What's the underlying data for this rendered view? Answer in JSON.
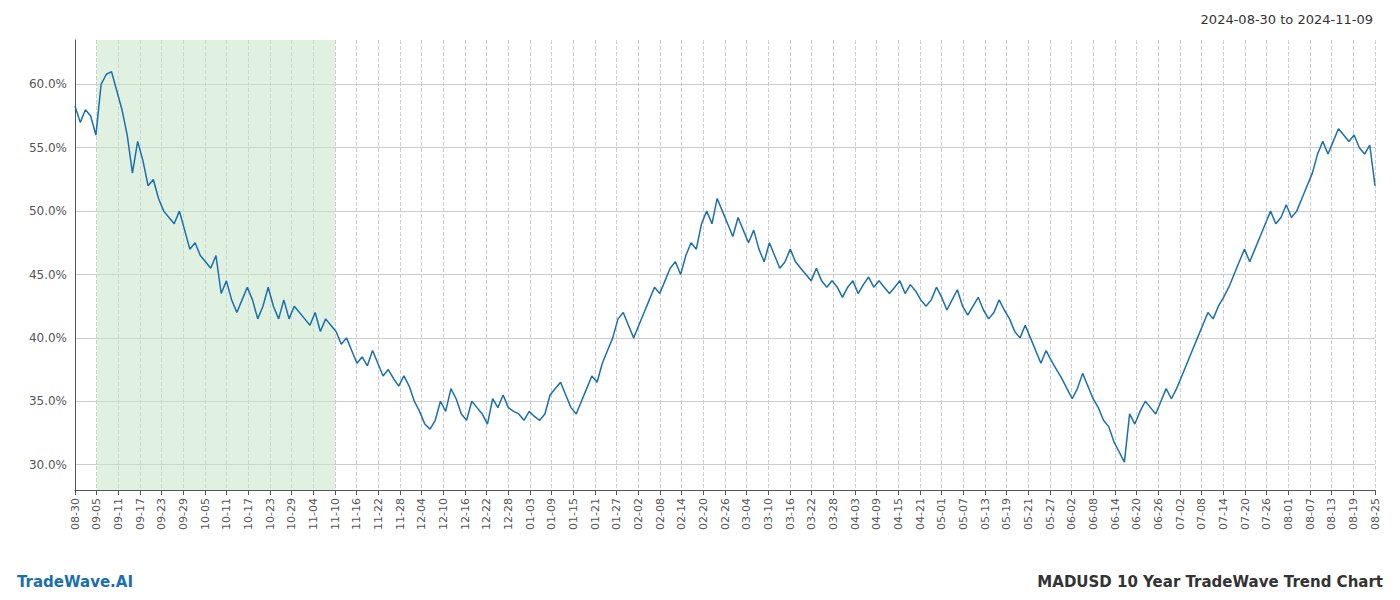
{
  "chart_data": {
    "type": "line",
    "title": "MADUSD 10 Year TradeWave Trend Chart",
    "subtitle": "2024-08-30 to 2024-11-09",
    "annotations": [
      "TradeWave.AI"
    ],
    "color": "#1a6faf",
    "grid": true,
    "bands": [
      {
        "x": [
          4.15,
          49.8
        ],
        "color": "#c8e6c9"
      }
    ],
    "xlim": [
      0,
      249
    ],
    "xticks": [
      {
        "value": 0,
        "label": "08-30"
      },
      {
        "value": 4.15,
        "label": "09-05"
      },
      {
        "value": 8.3,
        "label": "09-11"
      },
      {
        "value": 12.45,
        "label": "09-17"
      },
      {
        "value": 16.6,
        "label": "09-23"
      },
      {
        "value": 20.75,
        "label": "09-29"
      },
      {
        "value": 24.9,
        "label": "10-05"
      },
      {
        "value": 29.05,
        "label": "10-11"
      },
      {
        "value": 33.2,
        "label": "10-17"
      },
      {
        "value": 37.35,
        "label": "10-23"
      },
      {
        "value": 41.5,
        "label": "10-29"
      },
      {
        "value": 45.65,
        "label": "11-04"
      },
      {
        "value": 49.8,
        "label": "11-10"
      },
      {
        "value": 53.95,
        "label": "11-16"
      },
      {
        "value": 58.1,
        "label": "11-22"
      },
      {
        "value": 62.25,
        "label": "11-28"
      },
      {
        "value": 66.4,
        "label": "12-04"
      },
      {
        "value": 70.55,
        "label": "12-10"
      },
      {
        "value": 74.7,
        "label": "12-16"
      },
      {
        "value": 78.85,
        "label": "12-22"
      },
      {
        "value": 83,
        "label": "12-28"
      },
      {
        "value": 87.15,
        "label": "01-03"
      },
      {
        "value": 91.3,
        "label": "01-09"
      },
      {
        "value": 95.45,
        "label": "01-15"
      },
      {
        "value": 99.6,
        "label": "01-21"
      },
      {
        "value": 103.75,
        "label": "01-27"
      },
      {
        "value": 107.9,
        "label": "02-02"
      },
      {
        "value": 112.05,
        "label": "02-08"
      },
      {
        "value": 116.2,
        "label": "02-14"
      },
      {
        "value": 120.35,
        "label": "02-20"
      },
      {
        "value": 124.5,
        "label": "02-26"
      },
      {
        "value": 128.65,
        "label": "03-04"
      },
      {
        "value": 132.8,
        "label": "03-10"
      },
      {
        "value": 136.95,
        "label": "03-16"
      },
      {
        "value": 141.1,
        "label": "03-22"
      },
      {
        "value": 145.25,
        "label": "03-28"
      },
      {
        "value": 149.4,
        "label": "04-03"
      },
      {
        "value": 153.55,
        "label": "04-09"
      },
      {
        "value": 157.7,
        "label": "04-15"
      },
      {
        "value": 161.85,
        "label": "04-21"
      },
      {
        "value": 166,
        "label": "05-01"
      },
      {
        "value": 170.15,
        "label": "05-07"
      },
      {
        "value": 174.3,
        "label": "05-13"
      },
      {
        "value": 178.45,
        "label": "05-19"
      },
      {
        "value": 182.6,
        "label": "05-21"
      },
      {
        "value": 186.75,
        "label": "05-27"
      },
      {
        "value": 190.9,
        "label": "06-02"
      },
      {
        "value": 195.05,
        "label": "06-08"
      },
      {
        "value": 199.2,
        "label": "06-14"
      },
      {
        "value": 203.35,
        "label": "06-20"
      },
      {
        "value": 207.5,
        "label": "06-26"
      },
      {
        "value": 211.65,
        "label": "07-02"
      },
      {
        "value": 215.8,
        "label": "07-08"
      },
      {
        "value": 219.95,
        "label": "07-14"
      },
      {
        "value": 224.1,
        "label": "07-20"
      },
      {
        "value": 228.25,
        "label": "07-26"
      },
      {
        "value": 232.4,
        "label": "08-01"
      },
      {
        "value": 236.55,
        "label": "08-07"
      },
      {
        "value": 240.7,
        "label": "08-13"
      },
      {
        "value": 244.85,
        "label": "08-19"
      },
      {
        "value": 249,
        "label": "08-25"
      }
    ],
    "ylim": [
      0.28,
      0.635
    ],
    "yticks": [
      {
        "value": 0.3,
        "label": "30.0%"
      },
      {
        "value": 0.35,
        "label": "35.0%"
      },
      {
        "value": 0.4,
        "label": "40.0%"
      },
      {
        "value": 0.45,
        "label": "45.0%"
      },
      {
        "value": 0.5,
        "label": "50.0%"
      },
      {
        "value": 0.55,
        "label": "55.0%"
      },
      {
        "value": 0.6,
        "label": "60.0%"
      }
    ],
    "x": [
      0,
      1,
      2,
      3,
      4,
      5,
      6,
      7,
      8,
      9,
      10,
      11,
      12,
      13,
      14,
      15,
      16,
      17,
      18,
      19,
      20,
      21,
      22,
      23,
      24,
      25,
      26,
      27,
      28,
      29,
      30,
      31,
      32,
      33,
      34,
      35,
      36,
      37,
      38,
      39,
      40,
      41,
      42,
      43,
      44,
      45,
      46,
      47,
      48,
      49,
      50,
      51,
      52,
      53,
      54,
      55,
      56,
      57,
      58,
      59,
      60,
      61,
      62,
      63,
      64,
      65,
      66,
      67,
      68,
      69,
      70,
      71,
      72,
      73,
      74,
      75,
      76,
      77,
      78,
      79,
      80,
      81,
      82,
      83,
      84,
      85,
      86,
      87,
      88,
      89,
      90,
      91,
      92,
      93,
      94,
      95,
      96,
      97,
      98,
      99,
      100,
      101,
      102,
      103,
      104,
      105,
      106,
      107,
      108,
      109,
      110,
      111,
      112,
      113,
      114,
      115,
      116,
      117,
      118,
      119,
      120,
      121,
      122,
      123,
      124,
      125,
      126,
      127,
      128,
      129,
      130,
      131,
      132,
      133,
      134,
      135,
      136,
      137,
      138,
      139,
      140,
      141,
      142,
      143,
      144,
      145,
      146,
      147,
      148,
      149,
      150,
      151,
      152,
      153,
      154,
      155,
      156,
      157,
      158,
      159,
      160,
      161,
      162,
      163,
      164,
      165,
      166,
      167,
      168,
      169,
      170,
      171,
      172,
      173,
      174,
      175,
      176,
      177,
      178,
      179,
      180,
      181,
      182,
      183,
      184,
      185,
      186,
      187,
      188,
      189,
      190,
      191,
      192,
      193,
      194,
      195,
      196,
      197,
      198,
      199,
      200,
      201,
      202,
      203,
      204,
      205,
      206,
      207,
      208,
      209,
      210,
      211,
      212,
      213,
      214,
      215,
      216,
      217,
      218,
      219,
      220,
      221,
      222,
      223,
      224,
      225,
      226,
      227,
      228,
      229,
      230,
      231,
      232,
      233,
      234,
      235,
      236,
      237,
      238,
      239,
      240,
      241,
      242,
      243,
      244,
      245,
      246,
      247,
      248,
      249
    ],
    "values": [
      0.583,
      0.57,
      0.58,
      0.575,
      0.56,
      0.6,
      0.608,
      0.61,
      0.595,
      0.58,
      0.56,
      0.53,
      0.555,
      0.54,
      0.52,
      0.525,
      0.51,
      0.5,
      0.495,
      0.49,
      0.5,
      0.485,
      0.47,
      0.475,
      0.465,
      0.46,
      0.455,
      0.465,
      0.435,
      0.445,
      0.43,
      0.42,
      0.43,
      0.44,
      0.43,
      0.415,
      0.425,
      0.44,
      0.425,
      0.415,
      0.43,
      0.415,
      0.425,
      0.42,
      0.415,
      0.41,
      0.42,
      0.405,
      0.415,
      0.41,
      0.405,
      0.395,
      0.4,
      0.39,
      0.38,
      0.385,
      0.378,
      0.39,
      0.38,
      0.37,
      0.375,
      0.368,
      0.362,
      0.37,
      0.362,
      0.35,
      0.342,
      0.332,
      0.328,
      0.335,
      0.35,
      0.342,
      0.36,
      0.352,
      0.34,
      0.335,
      0.35,
      0.345,
      0.34,
      0.332,
      0.352,
      0.345,
      0.355,
      0.345,
      0.342,
      0.34,
      0.335,
      0.342,
      0.338,
      0.335,
      0.34,
      0.355,
      0.36,
      0.365,
      0.355,
      0.345,
      0.34,
      0.35,
      0.36,
      0.37,
      0.365,
      0.38,
      0.39,
      0.4,
      0.415,
      0.42,
      0.41,
      0.4,
      0.41,
      0.42,
      0.43,
      0.44,
      0.435,
      0.445,
      0.455,
      0.46,
      0.45,
      0.465,
      0.475,
      0.47,
      0.49,
      0.5,
      0.49,
      0.51,
      0.5,
      0.49,
      0.48,
      0.495,
      0.485,
      0.475,
      0.485,
      0.47,
      0.46,
      0.475,
      0.465,
      0.455,
      0.46,
      0.47,
      0.46,
      0.455,
      0.45,
      0.445,
      0.455,
      0.445,
      0.44,
      0.445,
      0.44,
      0.432,
      0.44,
      0.445,
      0.435,
      0.442,
      0.448,
      0.44,
      0.445,
      0.44,
      0.435,
      0.44,
      0.445,
      0.435,
      0.442,
      0.437,
      0.43,
      0.425,
      0.43,
      0.44,
      0.432,
      0.422,
      0.43,
      0.438,
      0.425,
      0.418,
      0.425,
      0.432,
      0.422,
      0.415,
      0.42,
      0.43,
      0.422,
      0.415,
      0.405,
      0.4,
      0.41,
      0.4,
      0.39,
      0.38,
      0.39,
      0.382,
      0.375,
      0.368,
      0.36,
      0.352,
      0.36,
      0.372,
      0.362,
      0.352,
      0.345,
      0.335,
      0.33,
      0.318,
      0.31,
      0.302,
      0.34,
      0.332,
      0.342,
      0.35,
      0.345,
      0.34,
      0.35,
      0.36,
      0.352,
      0.36,
      0.37,
      0.38,
      0.39,
      0.4,
      0.41,
      0.42,
      0.415,
      0.425,
      0.432,
      0.44,
      0.45,
      0.46,
      0.47,
      0.46,
      0.47,
      0.48,
      0.49,
      0.5,
      0.49,
      0.495,
      0.505,
      0.495,
      0.5,
      0.51,
      0.52,
      0.53,
      0.545,
      0.555,
      0.545,
      0.555,
      0.565,
      0.56,
      0.555,
      0.56,
      0.55,
      0.545,
      0.552,
      0.52
    ]
  }
}
